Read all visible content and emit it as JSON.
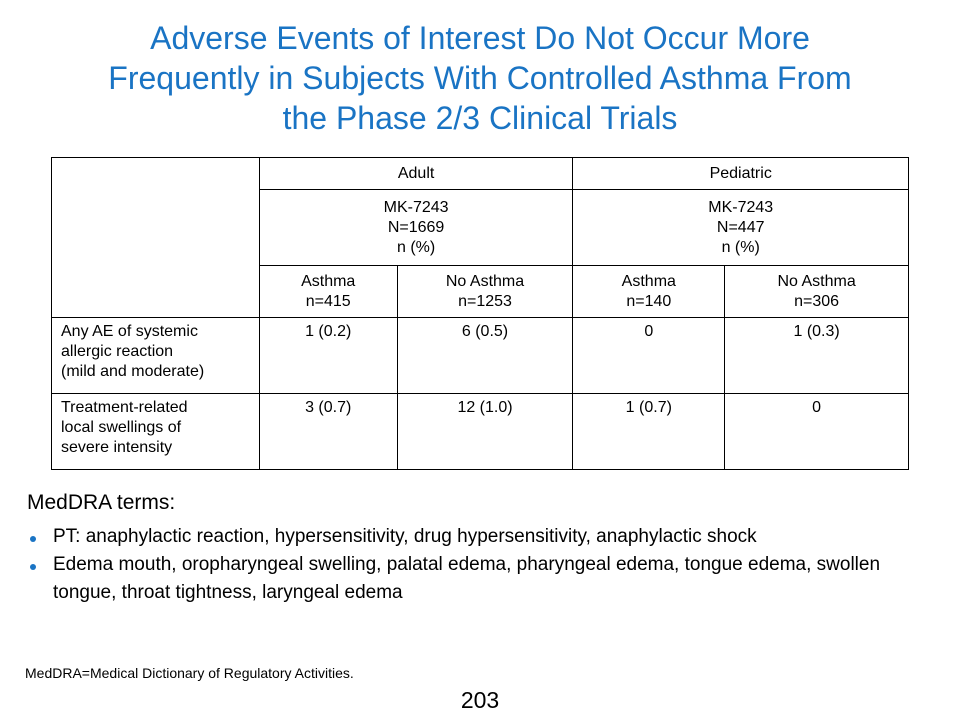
{
  "title": {
    "line1": "Adverse Events of Interest Do Not Occur More",
    "line2": "Frequently in Subjects With Controlled Asthma From",
    "line3": "the Phase 2/3 Clinical Trials"
  },
  "table": {
    "groups": {
      "adult": "Adult",
      "pediatric": "Pediatric"
    },
    "treatment": {
      "adult": [
        "MK-7243",
        "N=1669",
        "n (%)"
      ],
      "pediatric": [
        "MK-7243",
        "N=447",
        "n (%)"
      ]
    },
    "subgroups": [
      [
        "Asthma",
        "n=415"
      ],
      [
        "No Asthma",
        "n=1253"
      ],
      [
        "Asthma",
        "n=140"
      ],
      [
        "No Asthma",
        "n=306"
      ]
    ],
    "rows": [
      {
        "label": [
          "Any AE of systemic",
          "allergic reaction",
          "(mild and moderate)"
        ],
        "values": [
          "1 (0.2)",
          "6 (0.5)",
          "0",
          "1 (0.3)"
        ]
      },
      {
        "label": [
          "Treatment-related",
          "local swellings of",
          "severe intensity"
        ],
        "values": [
          "3 (0.7)",
          "12 (1.0)",
          "1 (0.7)",
          "0"
        ]
      }
    ]
  },
  "meddra": {
    "heading": "MedDRA terms:",
    "bullets": [
      "PT: anaphylactic reaction, hypersensitivity, drug hypersensitivity, anaphylactic shock",
      "Edema mouth, oropharyngeal swelling, palatal edema, pharyngeal edema, tongue edema, swollen tongue, throat tightness, laryngeal edema"
    ]
  },
  "footnote": "MedDRA=Medical Dictionary of Regulatory Activities.",
  "page_number": "203",
  "colors": {
    "title": "#1a74c4",
    "bullet": "#1a74c4",
    "header_divider": "#2b6fc0"
  }
}
